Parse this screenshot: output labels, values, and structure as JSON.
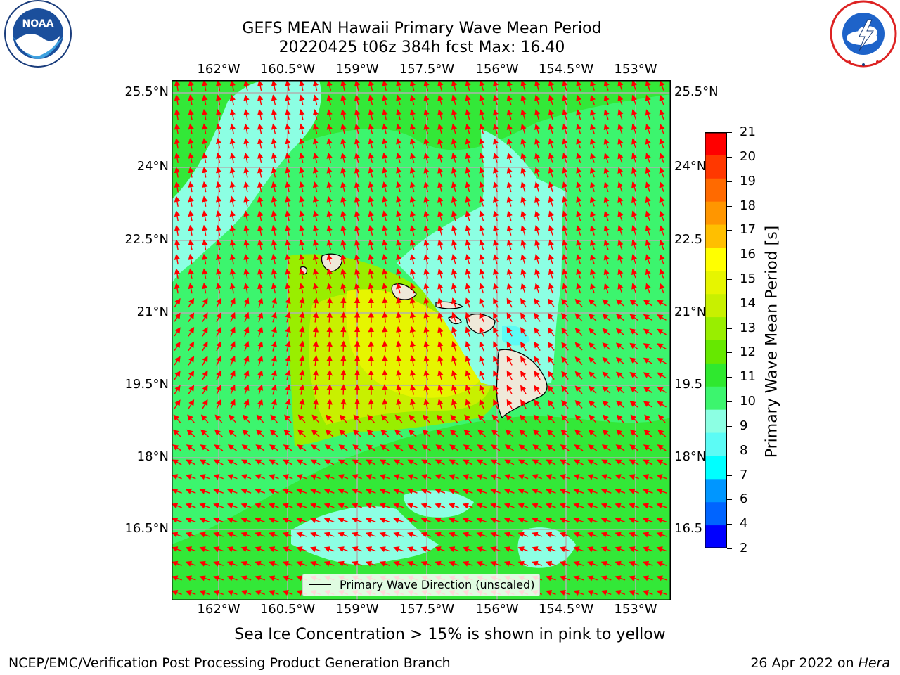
{
  "header": {
    "title_line1": "GEFS MEAN Hawaii Primary Wave Mean Period",
    "title_line2": "20220425 t06z 384h fcst   Max: 16.40"
  },
  "logos": {
    "noaa_text": "NOAA",
    "noaa_ring_text": "NATIONAL OCEANIC AND ATMOSPHERIC ADMINISTRATION · U.S. DEPARTMENT OF COMMERCE",
    "nws_ring_text": "NATIONAL WEATHER SERVICE"
  },
  "map": {
    "lon_ticks": [
      "162°W",
      "160.5°W",
      "159°W",
      "157.5°W",
      "156°W",
      "154.5°W",
      "153°W"
    ],
    "lat_ticks_left": [
      "25.5°N",
      "24°N",
      "22.5°N",
      "21°N",
      "19.5°N",
      "18°N",
      "16.5°N"
    ],
    "lat_ticks_right": [
      "25.5°N",
      "24°N",
      "22.5",
      "21°N",
      "19.5",
      "18°N",
      "16.5"
    ],
    "vector_color": "#ff0000",
    "land_color": "#efe9d9"
  },
  "legend": {
    "label": "Primary Wave Direction (unscaled)"
  },
  "colorbar": {
    "label": "Primary Wave Mean Period [s]",
    "ticks": [
      "21",
      "20",
      "19",
      "18",
      "17",
      "16",
      "15",
      "14",
      "13",
      "12",
      "11",
      "10",
      "9",
      "8",
      "7",
      "6",
      "4",
      "2"
    ],
    "colors": [
      "#ff0000",
      "#ff3800",
      "#ff6a00",
      "#ff9600",
      "#ffbf00",
      "#ffff00",
      "#e6f500",
      "#c8f000",
      "#99ee00",
      "#66e800",
      "#2fe82f",
      "#3cf56e",
      "#8cffe3",
      "#5cfbf5",
      "#00ffff",
      "#0096ff",
      "#0064ff",
      "#0000ff"
    ]
  },
  "caption": "Sea Ice Concentration > 15% is shown in pink to yellow",
  "footer": {
    "left": "NCEP/EMC/Verification Post Processing Product Generation Branch",
    "date": "26 Apr 2022 on ",
    "machine": "Hera"
  }
}
